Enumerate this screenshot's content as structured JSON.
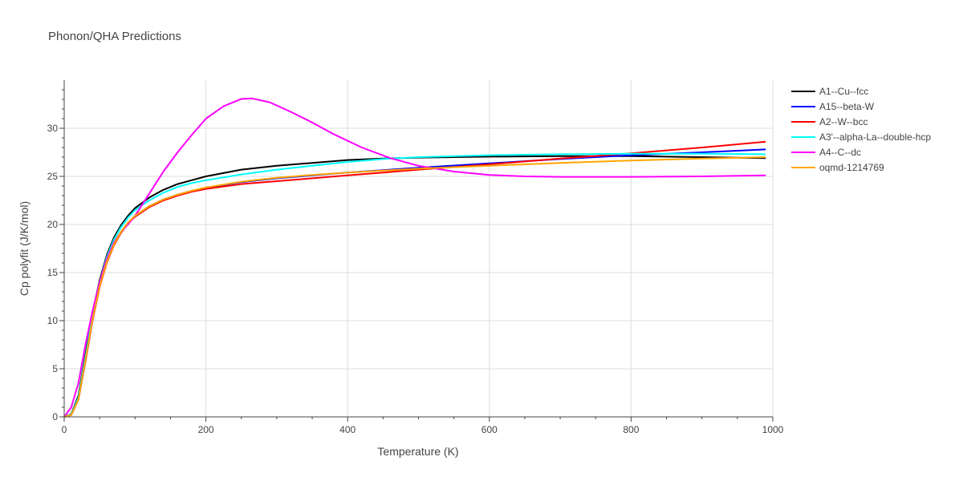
{
  "chart_data": {
    "type": "line",
    "title": "Phonon/QHA Predictions",
    "xlabel": "Temperature (K)",
    "ylabel": "Cp polyfit (J/K/mol)",
    "xlim": [
      0,
      1000
    ],
    "ylim": [
      0,
      35
    ],
    "xticks": [
      0,
      200,
      400,
      600,
      800,
      1000
    ],
    "yticks": [
      0,
      5,
      10,
      15,
      20,
      25,
      30
    ],
    "grid": true,
    "legend_position": "right",
    "series": [
      {
        "name": "A1--Cu--fcc",
        "color": "#000000",
        "points": [
          [
            0,
            0
          ],
          [
            10,
            0.3
          ],
          [
            20,
            2.2
          ],
          [
            30,
            6.5
          ],
          [
            40,
            10.8
          ],
          [
            50,
            14.2
          ],
          [
            60,
            16.8
          ],
          [
            70,
            18.6
          ],
          [
            80,
            19.9
          ],
          [
            90,
            20.9
          ],
          [
            100,
            21.7
          ],
          [
            120,
            22.8
          ],
          [
            140,
            23.6
          ],
          [
            160,
            24.2
          ],
          [
            180,
            24.6
          ],
          [
            200,
            25.0
          ],
          [
            250,
            25.7
          ],
          [
            300,
            26.1
          ],
          [
            350,
            26.4
          ],
          [
            400,
            26.7
          ],
          [
            450,
            26.85
          ],
          [
            500,
            26.95
          ],
          [
            600,
            27.05
          ],
          [
            700,
            27.1
          ],
          [
            800,
            27.1
          ],
          [
            900,
            27.0
          ],
          [
            990,
            26.9
          ]
        ]
      },
      {
        "name": "A15--beta-W",
        "color": "#0000ff",
        "points": [
          [
            0,
            0
          ],
          [
            10,
            0.2
          ],
          [
            20,
            1.8
          ],
          [
            30,
            5.8
          ],
          [
            40,
            10.0
          ],
          [
            50,
            13.6
          ],
          [
            60,
            16.1
          ],
          [
            70,
            17.9
          ],
          [
            80,
            19.2
          ],
          [
            90,
            20.2
          ],
          [
            100,
            20.9
          ],
          [
            120,
            21.9
          ],
          [
            140,
            22.6
          ],
          [
            160,
            23.1
          ],
          [
            180,
            23.5
          ],
          [
            200,
            23.8
          ],
          [
            250,
            24.4
          ],
          [
            300,
            24.8
          ],
          [
            350,
            25.1
          ],
          [
            400,
            25.4
          ],
          [
            450,
            25.65
          ],
          [
            500,
            25.9
          ],
          [
            600,
            26.35
          ],
          [
            700,
            26.8
          ],
          [
            800,
            27.2
          ],
          [
            900,
            27.5
          ],
          [
            990,
            27.8
          ]
        ]
      },
      {
        "name": "A2--W--bcc",
        "color": "#ff0000",
        "points": [
          [
            0,
            0
          ],
          [
            10,
            0.2
          ],
          [
            20,
            1.8
          ],
          [
            30,
            5.8
          ],
          [
            40,
            10.0
          ],
          [
            50,
            13.5
          ],
          [
            60,
            16.0
          ],
          [
            70,
            17.8
          ],
          [
            80,
            19.1
          ],
          [
            90,
            20.1
          ],
          [
            100,
            20.8
          ],
          [
            120,
            21.8
          ],
          [
            140,
            22.5
          ],
          [
            160,
            23.0
          ],
          [
            180,
            23.4
          ],
          [
            200,
            23.7
          ],
          [
            250,
            24.2
          ],
          [
            300,
            24.5
          ],
          [
            350,
            24.8
          ],
          [
            400,
            25.1
          ],
          [
            450,
            25.4
          ],
          [
            500,
            25.7
          ],
          [
            600,
            26.25
          ],
          [
            700,
            26.85
          ],
          [
            800,
            27.4
          ],
          [
            900,
            28.0
          ],
          [
            990,
            28.6
          ]
        ]
      },
      {
        "name": "A3'--alpha-La--double-hcp",
        "color": "#00ffff",
        "points": [
          [
            0,
            0
          ],
          [
            10,
            0.25
          ],
          [
            20,
            2.0
          ],
          [
            30,
            6.2
          ],
          [
            40,
            10.5
          ],
          [
            50,
            14.0
          ],
          [
            60,
            16.6
          ],
          [
            70,
            18.4
          ],
          [
            80,
            19.7
          ],
          [
            90,
            20.7
          ],
          [
            100,
            21.5
          ],
          [
            120,
            22.5
          ],
          [
            140,
            23.3
          ],
          [
            160,
            23.9
          ],
          [
            180,
            24.3
          ],
          [
            200,
            24.6
          ],
          [
            250,
            25.2
          ],
          [
            300,
            25.7
          ],
          [
            350,
            26.1
          ],
          [
            400,
            26.5
          ],
          [
            450,
            26.8
          ],
          [
            500,
            27.0
          ],
          [
            600,
            27.2
          ],
          [
            700,
            27.3
          ],
          [
            800,
            27.35
          ],
          [
            900,
            27.35
          ],
          [
            990,
            27.3
          ]
        ]
      },
      {
        "name": "A4--C--dc",
        "color": "#ff00ff",
        "points": [
          [
            0,
            0
          ],
          [
            10,
            1.0
          ],
          [
            20,
            3.5
          ],
          [
            30,
            7.5
          ],
          [
            40,
            11.0
          ],
          [
            50,
            14.0
          ],
          [
            60,
            16.4
          ],
          [
            70,
            18.1
          ],
          [
            80,
            19.2
          ],
          [
            90,
            20.0
          ],
          [
            100,
            20.9
          ],
          [
            120,
            23.2
          ],
          [
            140,
            25.5
          ],
          [
            160,
            27.5
          ],
          [
            180,
            29.3
          ],
          [
            200,
            31.0
          ],
          [
            225,
            32.3
          ],
          [
            250,
            33.05
          ],
          [
            265,
            33.1
          ],
          [
            290,
            32.7
          ],
          [
            320,
            31.7
          ],
          [
            350,
            30.6
          ],
          [
            380,
            29.4
          ],
          [
            420,
            28.0
          ],
          [
            460,
            26.9
          ],
          [
            500,
            26.1
          ],
          [
            550,
            25.5
          ],
          [
            600,
            25.15
          ],
          [
            650,
            25.0
          ],
          [
            700,
            24.95
          ],
          [
            800,
            24.95
          ],
          [
            900,
            25.0
          ],
          [
            990,
            25.1
          ]
        ]
      },
      {
        "name": "oqmd-1214769",
        "color": "#ffa500",
        "points": [
          [
            0,
            0
          ],
          [
            10,
            0.2
          ],
          [
            20,
            1.8
          ],
          [
            30,
            5.9
          ],
          [
            40,
            10.1
          ],
          [
            50,
            13.6
          ],
          [
            60,
            16.1
          ],
          [
            70,
            17.9
          ],
          [
            80,
            19.2
          ],
          [
            90,
            20.2
          ],
          [
            100,
            20.9
          ],
          [
            120,
            21.9
          ],
          [
            140,
            22.6
          ],
          [
            160,
            23.1
          ],
          [
            180,
            23.5
          ],
          [
            200,
            23.85
          ],
          [
            250,
            24.45
          ],
          [
            300,
            24.85
          ],
          [
            350,
            25.15
          ],
          [
            400,
            25.4
          ],
          [
            450,
            25.6
          ],
          [
            500,
            25.8
          ],
          [
            600,
            26.1
          ],
          [
            700,
            26.4
          ],
          [
            800,
            26.65
          ],
          [
            900,
            26.85
          ],
          [
            990,
            27.0
          ]
        ]
      }
    ]
  }
}
